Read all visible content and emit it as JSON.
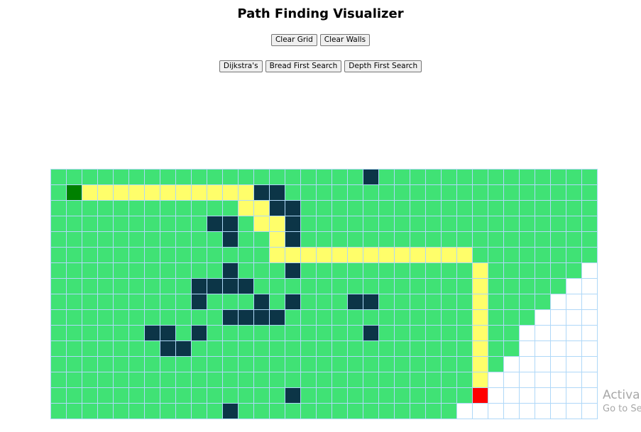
{
  "title": "Path Finding Visualizer",
  "controls": {
    "clear_grid": "Clear Grid",
    "clear_walls": "Clear Walls"
  },
  "algorithms": {
    "dijkstra": "Dijkstra's",
    "bfs": "Bread First Search",
    "dfs": "Depth First Search"
  },
  "grid": {
    "cols": 35,
    "legend": {
      "V": "visited",
      "W": "wall",
      "P": "path",
      "S": "start",
      "E": "end",
      "U": "unvisited"
    },
    "rows": [
      "VVVVVVVVVVVVVVVVVVVVWVVVVVVVVVVVVVV",
      "VSPPPPPPPPPPPWWVVVVVVVVVVVVVVVVVVVV",
      "VVVVVVVVVVVVPPWWVVVVVVVVVVVVVVVVVVV",
      "VVVVVVVVVVWWVPPWVVVVVVVVVVVVVVVVVVV",
      "VVVVVVVVVVVWVVPWVVVVVVVVVVVVVVVVVVV",
      "VVVVVVVVVVVVVVPPPPPPPPPPPPPVVVVVVVV",
      "VVVVVVVVVVVWVVVWVVVVVVVVVVVPVVVVVVU",
      "VVVVVVVVVWWWWVVVVVVVVVVVVVVPVVVVVUU",
      "VVVVVVVVVWVVVWVWVVVWWVVVVVVPVVVVUUU",
      "VVVVVVVVVVVWWWWVVVVVVVVVVVVPVVVUUUU",
      "VVVVVVWWVWVVVVVVVVVVWVVVVVVPVVUUUUU",
      "VVVVVVVWWVVVVVVVVVVVVVVVVVVPVVUUUUU",
      "VVVVVVVVVVVVVVVVVVVVVVVVVVVPVUUUUUU",
      "VVVVVVVVVVVVVVVVVVVVVVVVVVVPUUUUUUU",
      "VVVVVVVVVVVVVVVWVVVVVVVVVVVEUUUUUUU",
      "VVVVVVVVVVVWVVVVVVVVVVVVVVUUUUUUUUU"
    ]
  },
  "watermark": {
    "title": "Activa",
    "subtitle": "Go to Se"
  }
}
